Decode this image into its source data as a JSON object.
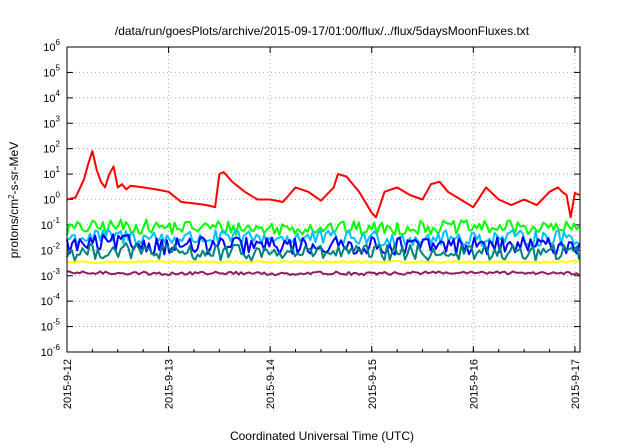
{
  "chart_data": {
    "type": "line",
    "title": "/data/run/goesPlots/archive/2015-09-17/01:00/flux/../flux/5daysMoonFluxes.txt",
    "xlabel": "Coordinated Universal Time (UTC)",
    "ylabel": "protons/cm2-s-sr-MeV",
    "ylabel_parts": {
      "pre": "protons/cm",
      "sup": "2",
      "post": "-s-sr-MeV"
    },
    "yscale": "log",
    "ylim": [
      1e-06,
      1000000.0
    ],
    "xlim_days": [
      0,
      5.05
    ],
    "grid": true,
    "ytick_labels": [
      {
        "exp": -6,
        "base": "10",
        "sup": "-6"
      },
      {
        "exp": -5,
        "base": "10",
        "sup": "-5"
      },
      {
        "exp": -4,
        "base": "10",
        "sup": "-4"
      },
      {
        "exp": -3,
        "base": "10",
        "sup": "-3"
      },
      {
        "exp": -2,
        "base": "10",
        "sup": "-2"
      },
      {
        "exp": -1,
        "base": "10",
        "sup": "-1"
      },
      {
        "exp": 0,
        "base": "10",
        "sup": "0"
      },
      {
        "exp": 1,
        "base": "10",
        "sup": "1"
      },
      {
        "exp": 2,
        "base": "10",
        "sup": "2"
      },
      {
        "exp": 3,
        "base": "10",
        "sup": "3"
      },
      {
        "exp": 4,
        "base": "10",
        "sup": "4"
      },
      {
        "exp": 5,
        "base": "10",
        "sup": "5"
      },
      {
        "exp": 6,
        "base": "10",
        "sup": "6"
      }
    ],
    "xtick_labels": [
      {
        "day": 0,
        "label": "2015-9-12"
      },
      {
        "day": 1,
        "label": "2015-9-13"
      },
      {
        "day": 2,
        "label": "2015-9-14"
      },
      {
        "day": 3,
        "label": "2015-9-15"
      },
      {
        "day": 4,
        "label": "2015-9-16"
      },
      {
        "day": 5,
        "label": "2015-9-17"
      }
    ],
    "series": [
      {
        "color": "#ff0000",
        "x": [
          "2015-9-12 00:00",
          "2015-9-12 02:00",
          "2015-9-12 04:00",
          "2015-9-12 05:00",
          "2015-9-12 06:00",
          "2015-9-12 07:00",
          "2015-9-12 08:00",
          "2015-9-12 09:00",
          "2015-9-12 10:00",
          "2015-9-12 11:00",
          "2015-9-12 12:00",
          "2015-9-12 13:00",
          "2015-9-12 14:00",
          "2015-9-12 15:00",
          "2015-9-12 18:00",
          "2015-9-12 21:00",
          "2015-9-13 00:00",
          "2015-9-13 03:00",
          "2015-9-13 06:00",
          "2015-9-13 09:00",
          "2015-9-13 11:00",
          "2015-9-13 12:00",
          "2015-9-13 13:00",
          "2015-9-13 15:00",
          "2015-9-13 18:00",
          "2015-9-13 21:00",
          "2015-9-14 00:00",
          "2015-9-14 03:00",
          "2015-9-14 06:00",
          "2015-9-14 09:00",
          "2015-9-14 12:00",
          "2015-9-14 15:00",
          "2015-9-14 16:00",
          "2015-9-14 18:00",
          "2015-9-14 21:00",
          "2015-9-15 00:00",
          "2015-9-15 01:00",
          "2015-9-15 03:00",
          "2015-9-15 06:00",
          "2015-9-15 09:00",
          "2015-9-15 12:00",
          "2015-9-15 14:00",
          "2015-9-15 16:00",
          "2015-9-15 18:00",
          "2015-9-15 21:00",
          "2015-9-16 00:00",
          "2015-9-16 03:00",
          "2015-9-16 06:00",
          "2015-9-16 09:00",
          "2015-9-16 12:00",
          "2015-9-16 15:00",
          "2015-9-16 18:00",
          "2015-9-16 20:00",
          "2015-9-16 21:00",
          "2015-9-16 22:00",
          "2015-9-16 23:00",
          "2015-9-17 00:00",
          "2015-9-17 01:00"
        ],
        "values": [
          1.0,
          1.2,
          6.0,
          25,
          80,
          15,
          5.0,
          3,
          10,
          20,
          3.0,
          4.0,
          2.5,
          3.5,
          3.0,
          2.5,
          2.0,
          0.8,
          0.7,
          0.6,
          0.5,
          10,
          12,
          5,
          2.0,
          1.0,
          1.0,
          0.8,
          3.0,
          2.0,
          0.9,
          3.0,
          10,
          8,
          2.0,
          0.3,
          0.2,
          2.0,
          3.0,
          1.5,
          1.0,
          4,
          5,
          2.0,
          1.0,
          0.5,
          3.0,
          1.0,
          0.6,
          1.0,
          0.6,
          2.0,
          3.0,
          2.0,
          1.5,
          0.2,
          1.8,
          1.5
        ]
      },
      {
        "color": "#00ff00",
        "x": [
          "2015-9-12 00:00",
          "2015-9-12 12:00",
          "2015-9-13 00:00",
          "2015-9-13 12:00",
          "2015-9-14 00:00",
          "2015-9-14 12:00",
          "2015-9-15 00:00",
          "2015-9-15 12:00",
          "2015-9-16 00:00",
          "2015-9-16 12:00",
          "2015-9-17 00:00",
          "2015-9-17 01:00"
        ],
        "values": [
          0.07,
          0.09,
          0.08,
          0.08,
          0.07,
          0.08,
          0.07,
          0.08,
          0.08,
          0.08,
          0.07,
          0.07
        ]
      },
      {
        "color": "#00c0ff",
        "x": [
          "2015-9-12 00:00",
          "2015-9-12 12:00",
          "2015-9-13 00:00",
          "2015-9-13 12:00",
          "2015-9-14 00:00",
          "2015-9-14 12:00",
          "2015-9-15 00:00",
          "2015-9-15 12:00",
          "2015-9-16 00:00",
          "2015-9-16 12:00",
          "2015-9-17 00:00",
          "2015-9-17 01:00"
        ],
        "values": [
          0.03,
          0.035,
          0.03,
          0.03,
          0.03,
          0.03,
          0.03,
          0.03,
          0.03,
          0.03,
          0.03,
          0.03
        ]
      },
      {
        "color": "#0000ff",
        "x": [
          "2015-9-12 00:00",
          "2015-9-12 12:00",
          "2015-9-13 00:00",
          "2015-9-13 12:00",
          "2015-9-14 00:00",
          "2015-9-14 12:00",
          "2015-9-15 00:00",
          "2015-9-15 12:00",
          "2015-9-16 00:00",
          "2015-9-16 12:00",
          "2015-9-17 00:00",
          "2015-9-17 01:00"
        ],
        "values": [
          0.015,
          0.02,
          0.015,
          0.015,
          0.015,
          0.015,
          0.015,
          0.015,
          0.015,
          0.015,
          0.015,
          0.015
        ]
      },
      {
        "color": "#008080",
        "x": [
          "2015-9-12 00:00",
          "2015-9-12 12:00",
          "2015-9-13 00:00",
          "2015-9-13 12:00",
          "2015-9-14 00:00",
          "2015-9-14 12:00",
          "2015-9-15 00:00",
          "2015-9-15 12:00",
          "2015-9-16 00:00",
          "2015-9-16 12:00",
          "2015-9-17 00:00",
          "2015-9-17 01:00"
        ],
        "values": [
          0.008,
          0.01,
          0.008,
          0.008,
          0.008,
          0.008,
          0.008,
          0.008,
          0.008,
          0.008,
          0.008,
          0.008
        ]
      },
      {
        "color": "#ffff00",
        "x": [
          "2015-9-12 00:00",
          "2015-9-12 12:00",
          "2015-9-13 00:00",
          "2015-9-13 12:00",
          "2015-9-14 00:00",
          "2015-9-14 12:00",
          "2015-9-15 00:00",
          "2015-9-15 12:00",
          "2015-9-16 00:00",
          "2015-9-16 12:00",
          "2015-9-17 00:00",
          "2015-9-17 01:00"
        ],
        "values": [
          0.0035,
          0.0035,
          0.0035,
          0.0035,
          0.0035,
          0.0035,
          0.0035,
          0.0035,
          0.0035,
          0.0035,
          0.0035,
          0.0035
        ]
      },
      {
        "color": "#8b2060",
        "x": [
          "2015-9-12 00:00",
          "2015-9-12 12:00",
          "2015-9-13 00:00",
          "2015-9-13 12:00",
          "2015-9-14 00:00",
          "2015-9-14 12:00",
          "2015-9-15 00:00",
          "2015-9-15 12:00",
          "2015-9-16 00:00",
          "2015-9-16 12:00",
          "2015-9-17 00:00",
          "2015-9-17 01:00"
        ],
        "values": [
          0.0013,
          0.0013,
          0.0012,
          0.0013,
          0.0012,
          0.0013,
          0.0012,
          0.0013,
          0.0013,
          0.0013,
          0.0013,
          0.0012
        ]
      }
    ]
  }
}
